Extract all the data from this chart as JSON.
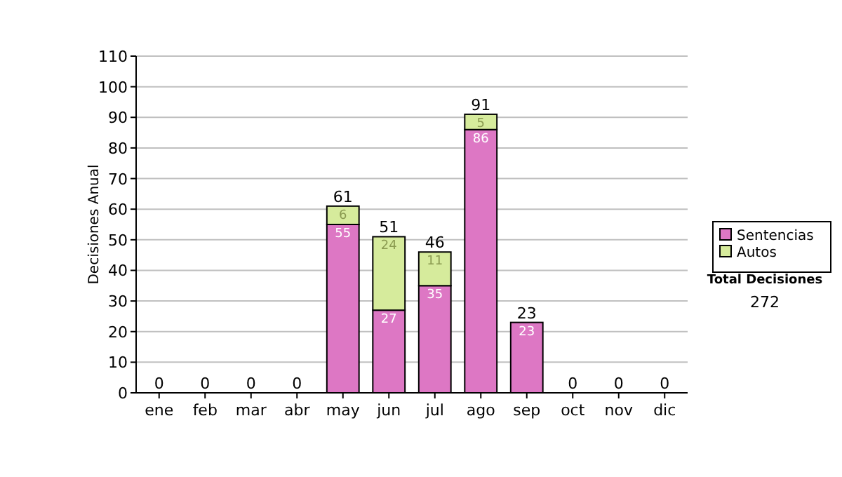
{
  "chart_data": {
    "type": "bar",
    "stacked": true,
    "ylabel": "Decisiones Anual",
    "categories": [
      "ene",
      "feb",
      "mar",
      "abr",
      "may",
      "jun",
      "jul",
      "ago",
      "sep",
      "oct",
      "nov",
      "dic"
    ],
    "series": [
      {
        "name": "Sentencias",
        "color": "#dd77c4",
        "values": [
          0,
          0,
          0,
          0,
          55,
          27,
          35,
          86,
          23,
          0,
          0,
          0
        ],
        "value_labels": [
          null,
          null,
          null,
          null,
          "55",
          "27",
          "35",
          "86",
          "23",
          null,
          null,
          null
        ]
      },
      {
        "name": "Autos",
        "color": "#d6eb9c",
        "values": [
          0,
          0,
          0,
          0,
          6,
          24,
          11,
          5,
          0,
          0,
          0,
          0
        ],
        "value_labels": [
          null,
          null,
          null,
          null,
          "6",
          "24",
          "11",
          "5",
          null,
          null,
          null,
          null
        ]
      }
    ],
    "totals": [
      "0",
      "0",
      "0",
      "0",
      "61",
      "51",
      "46",
      "91",
      "23",
      "0",
      "0",
      "0"
    ],
    "ylim": [
      0,
      110
    ],
    "yticks": [
      0,
      10,
      20,
      30,
      40,
      50,
      60,
      70,
      80,
      90,
      100,
      110
    ],
    "grid": "y",
    "legend": "right",
    "annotations": [
      "Total Decisiones",
      "272"
    ]
  }
}
